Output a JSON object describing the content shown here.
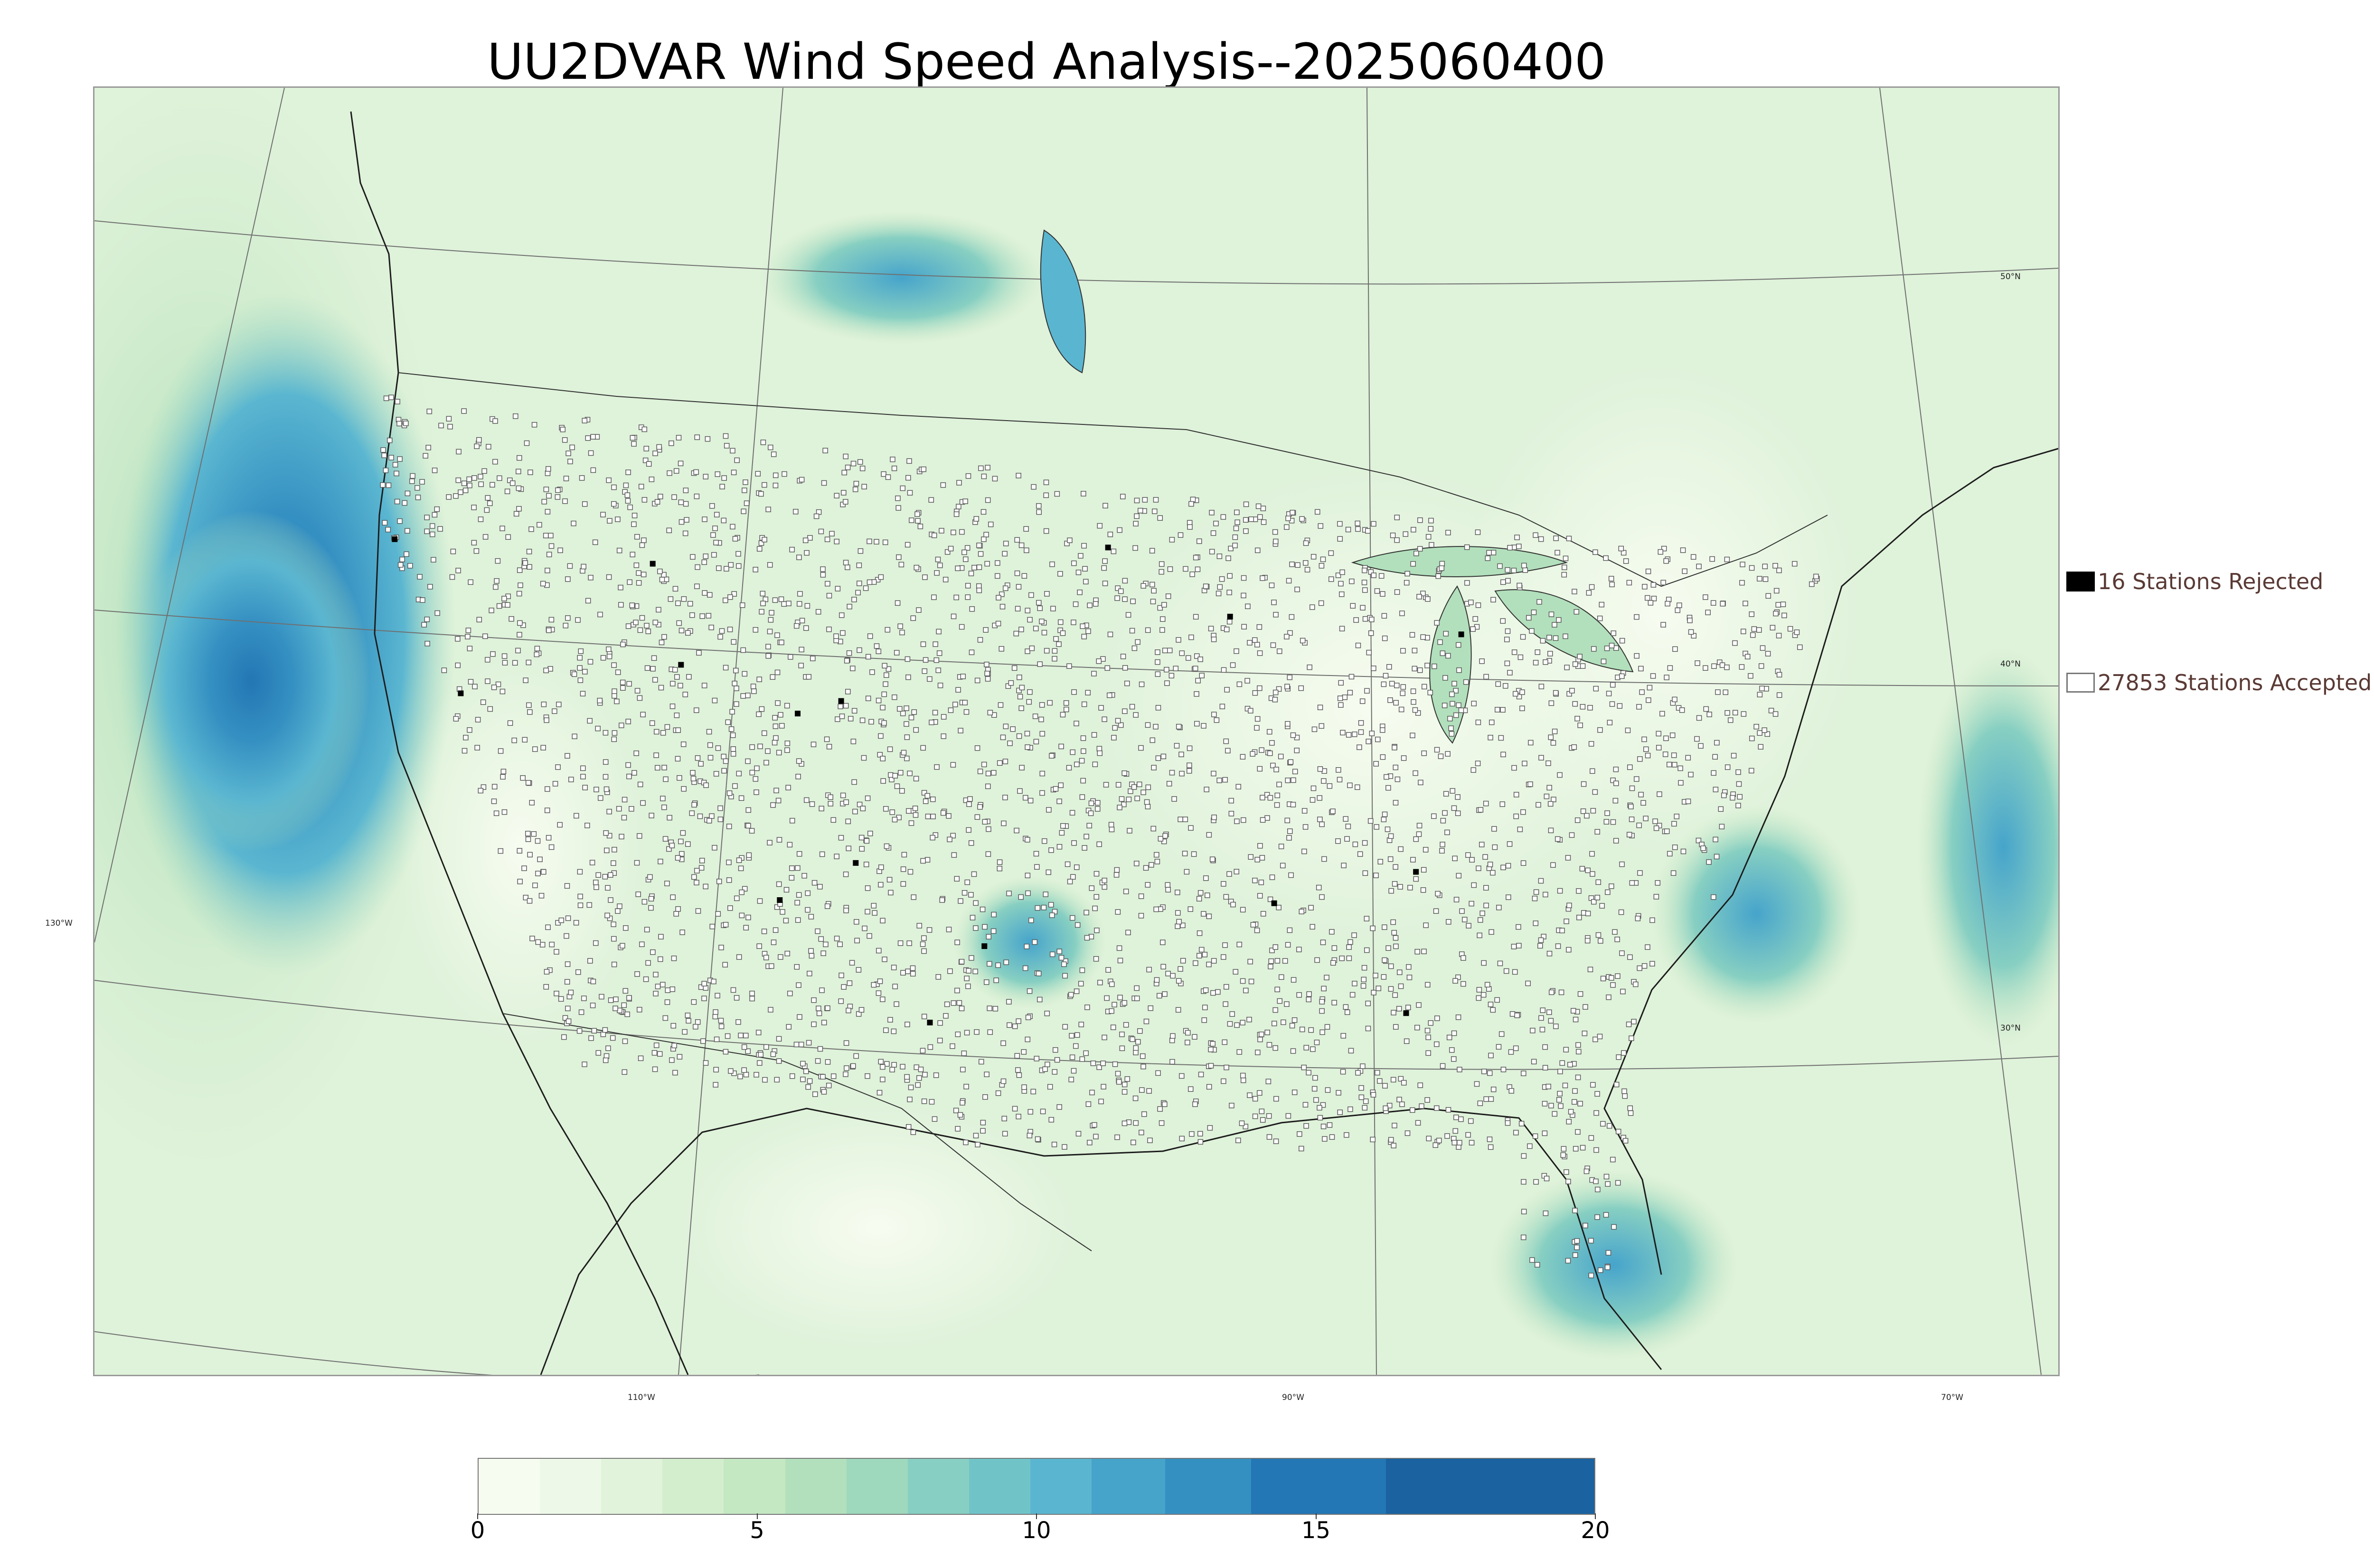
{
  "title": "UU2DVAR Wind Speed Analysis--2025060400",
  "map": {
    "longitude_labels": [
      "130°W",
      "110°W",
      "90°W",
      "70°W"
    ],
    "latitude_labels": [
      "50°N",
      "40°N",
      "30°N"
    ],
    "station_marker_color": "#5a5a5a",
    "rejected_marker_color": "#000000"
  },
  "legend": {
    "rejected": {
      "label": "16 Stations Rejected",
      "icon": "filled-square",
      "color": "#000000"
    },
    "accepted": {
      "label": "27853 Stations Accepted",
      "icon": "hollow-square",
      "color": "#777777"
    }
  },
  "colorbar": {
    "min": 0,
    "max": 20,
    "tick_labels": [
      "0",
      "5",
      "10",
      "15",
      "20"
    ],
    "colors": [
      "#f7fcf0",
      "#eef8e8",
      "#e1f3db",
      "#d3eecd",
      "#c4e8c1",
      "#b2e0bc",
      "#9ed8bd",
      "#87cfc2",
      "#70c4c8",
      "#5ab6d0",
      "#46a4cb",
      "#3590c2",
      "#2377b4",
      "#1a62a0"
    ]
  },
  "chart_data": {
    "type": "heatmap",
    "title": "UU2DVAR Wind Speed Analysis--2025060400",
    "variable": "Wind Speed",
    "colorbar_range": [
      0,
      20
    ],
    "colorbar_ticks": [
      0,
      5,
      10,
      15,
      20
    ],
    "stations_rejected": 16,
    "stations_accepted": 27853,
    "longitude_ticks": [
      "130°W",
      "110°W",
      "90°W",
      "70°W"
    ],
    "latitude_ticks": [
      "50°N",
      "40°N",
      "30°N"
    ]
  }
}
